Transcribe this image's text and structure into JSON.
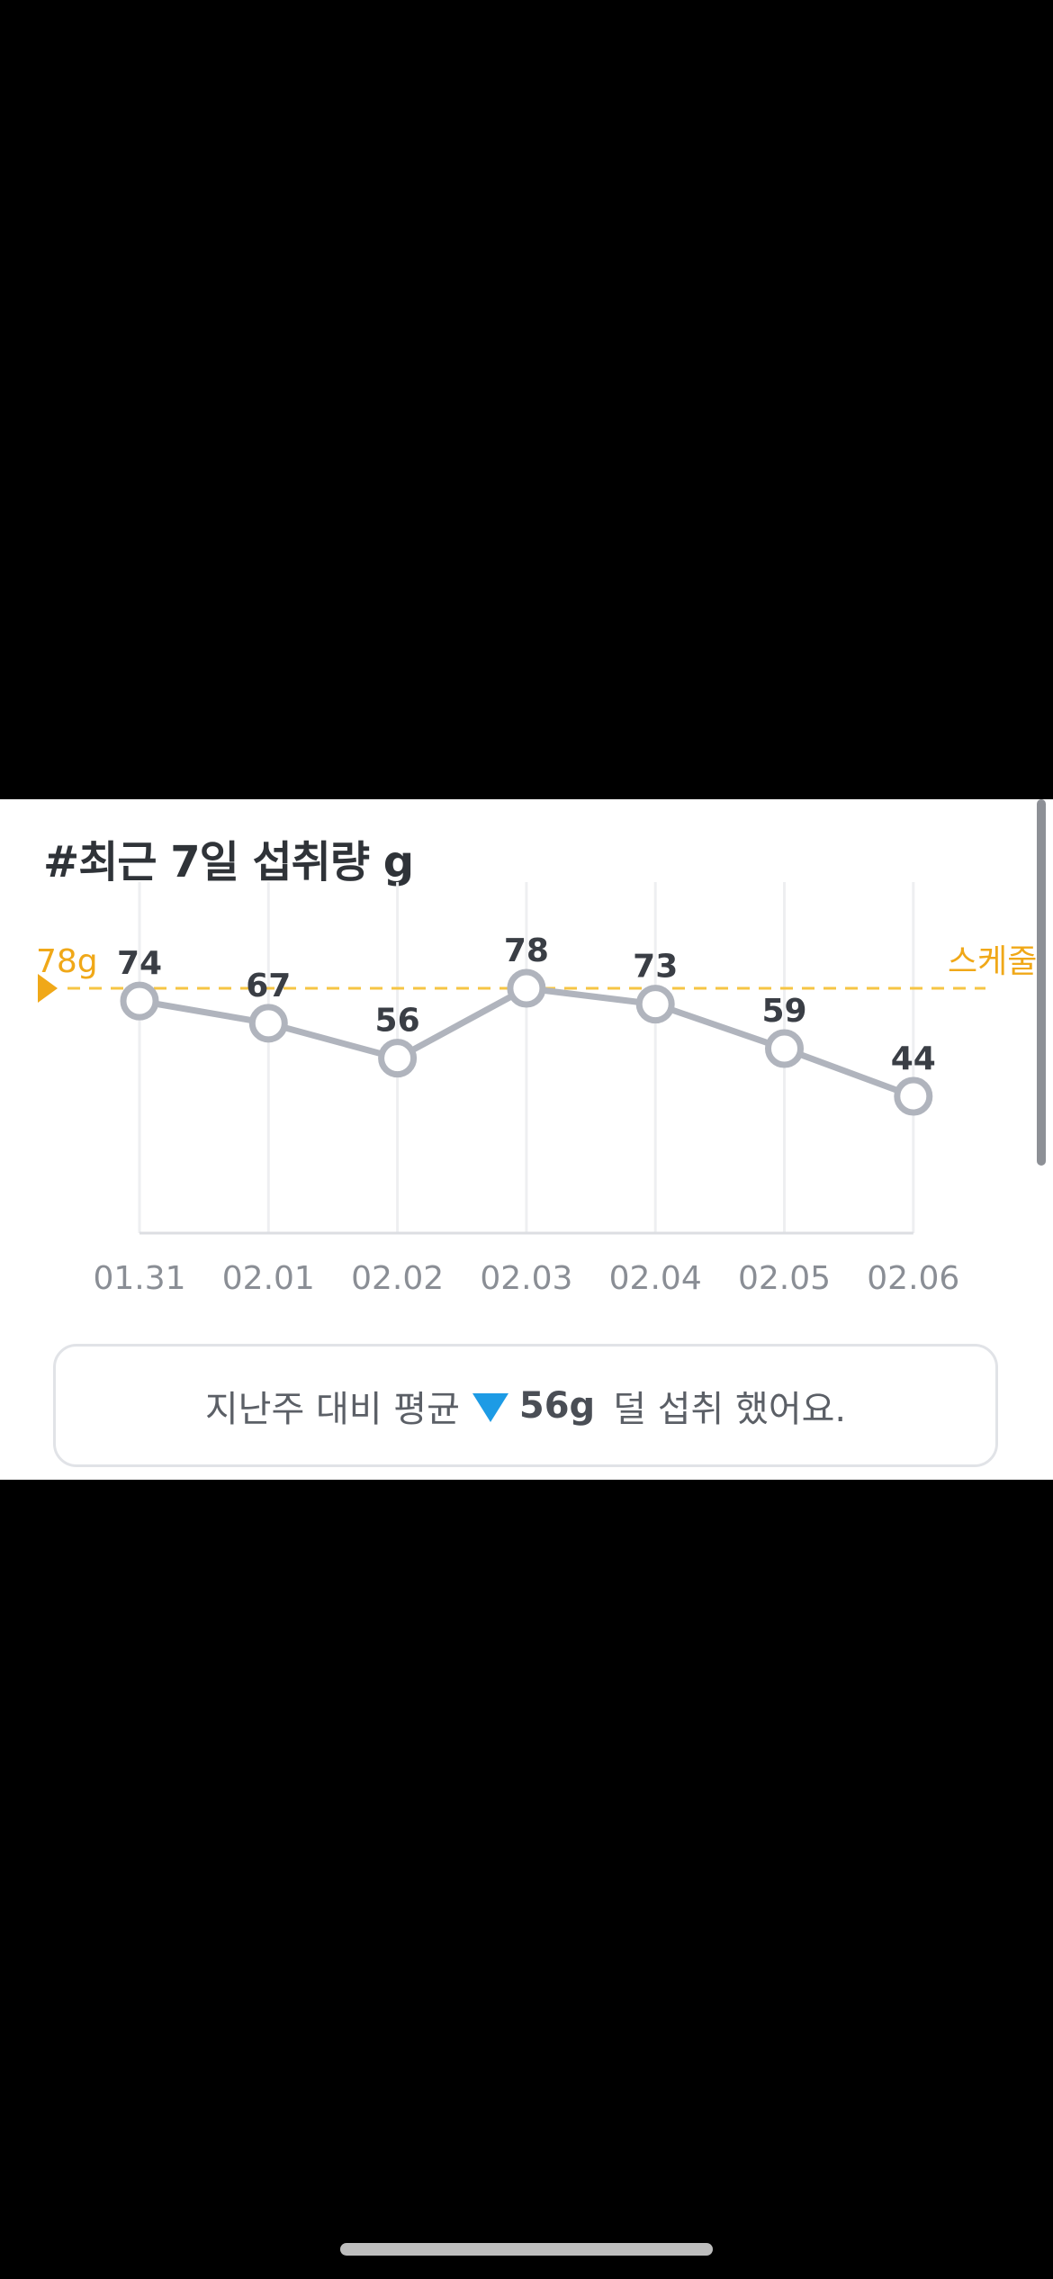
{
  "card": {
    "title": "#최근 7일 섭취량 g",
    "summary": {
      "prefix": "지난주 대비 평균",
      "value": "56g",
      "suffix": "덜 섭취 했어요.",
      "arrow_color": "#1d9be5"
    }
  },
  "chart_data": {
    "type": "line",
    "title": "#최근 7일 섭취량 g",
    "categories": [
      "01.31",
      "02.01",
      "02.02",
      "02.03",
      "02.04",
      "02.05",
      "02.06"
    ],
    "series": [
      {
        "values": [
          74,
          67,
          56,
          78,
          73,
          59,
          44
        ],
        "color": "#b0b4bd"
      }
    ],
    "data_labels": [
      "74",
      "67",
      "56",
      "78",
      "73",
      "59",
      "44"
    ],
    "reference_line": {
      "value": 78,
      "label": "78g",
      "right_label": "스케줄",
      "color": "#f6c544",
      "label_color": "#f0a818"
    },
    "grid": "vertical",
    "legend": "none"
  },
  "icons": {
    "summary_arrow": "down-triangle-icon",
    "reference_marker": "right-triangle-icon"
  }
}
